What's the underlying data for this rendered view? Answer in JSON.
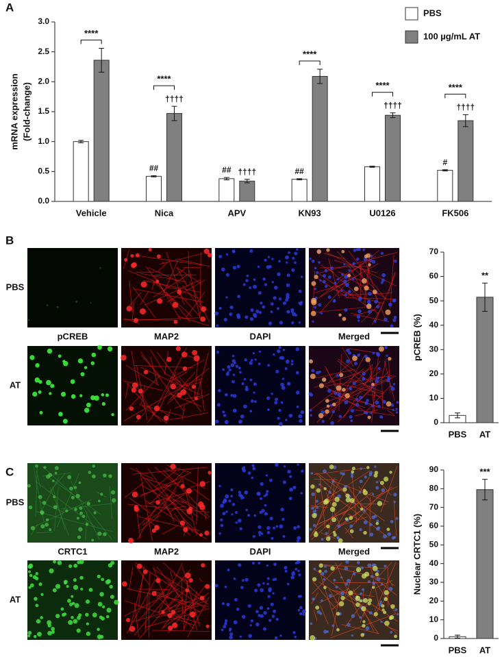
{
  "panels": [
    "A",
    "B",
    "C"
  ],
  "micrographs": [
    {
      "rows": [
        "PBS",
        "AT"
      ],
      "columns": [
        "pCREB",
        "MAP2",
        "DAPI",
        "Merged"
      ]
    },
    {
      "rows": [
        "PBS",
        "AT"
      ],
      "columns": [
        "CRTC1",
        "MAP2",
        "DAPI",
        "Merged"
      ]
    }
  ],
  "chart_data": [
    {
      "type": "grouped-bar",
      "ylabel": [
        "mRNA expression",
        "(Fold-change)"
      ],
      "categories": [
        "Vehicle",
        "Nica",
        "APV",
        "KN93",
        "U0126",
        "FK506"
      ],
      "series": [
        {
          "name": "PBS",
          "color": "#ffffff",
          "values": [
            1.0,
            0.42,
            0.38,
            0.37,
            0.58,
            0.52
          ],
          "errors": [
            0.02,
            0.01,
            0.02,
            0.01,
            0.01,
            0.01
          ],
          "annotations": [
            null,
            "##",
            "##",
            "##",
            null,
            "#"
          ]
        },
        {
          "name": "100 µg/mL AT",
          "color": "#808080",
          "values": [
            2.36,
            1.47,
            0.34,
            2.09,
            1.44,
            1.35
          ],
          "errors": [
            0.2,
            0.12,
            0.03,
            0.12,
            0.04,
            0.1
          ],
          "annotations": [
            null,
            "††††",
            "††††",
            null,
            "††††",
            "††††"
          ]
        }
      ],
      "brackets": [
        "****",
        "****",
        null,
        "****",
        "****",
        "****"
      ],
      "ylim": [
        0,
        3
      ],
      "yticks": [
        {
          "value": 0,
          "label": "0.0"
        },
        0.5,
        {
          "value": 1,
          "label": "1.0"
        },
        1.5,
        {
          "value": 2,
          "label": "2.0"
        },
        2.5,
        {
          "value": 3,
          "label": "3.0"
        }
      ],
      "legend": "upper right",
      "grid": false
    },
    {
      "type": "bar",
      "ylabel": "pCREB (%)",
      "categories": [
        "PBS",
        "AT"
      ],
      "values": [
        3,
        51.5
      ],
      "errors": [
        1,
        5.8
      ],
      "colors": [
        "#ffffff",
        "#808080"
      ],
      "annotations": [
        null,
        "**"
      ],
      "ylim": [
        0,
        70
      ],
      "yticks": [
        0,
        10,
        20,
        30,
        40,
        50,
        60,
        70
      ],
      "grid": false
    },
    {
      "type": "bar",
      "ylabel": "Nuclear CRTC1 (%)",
      "categories": [
        "PBS",
        "AT"
      ],
      "values": [
        1,
        79.5
      ],
      "errors": [
        0.8,
        5.5
      ],
      "colors": [
        "#ffffff",
        "#808080"
      ],
      "annotations": [
        null,
        "***"
      ],
      "ylim": [
        0,
        90
      ],
      "yticks": [
        0,
        10,
        20,
        30,
        40,
        50,
        60,
        70,
        80,
        90
      ],
      "grid": false
    }
  ]
}
